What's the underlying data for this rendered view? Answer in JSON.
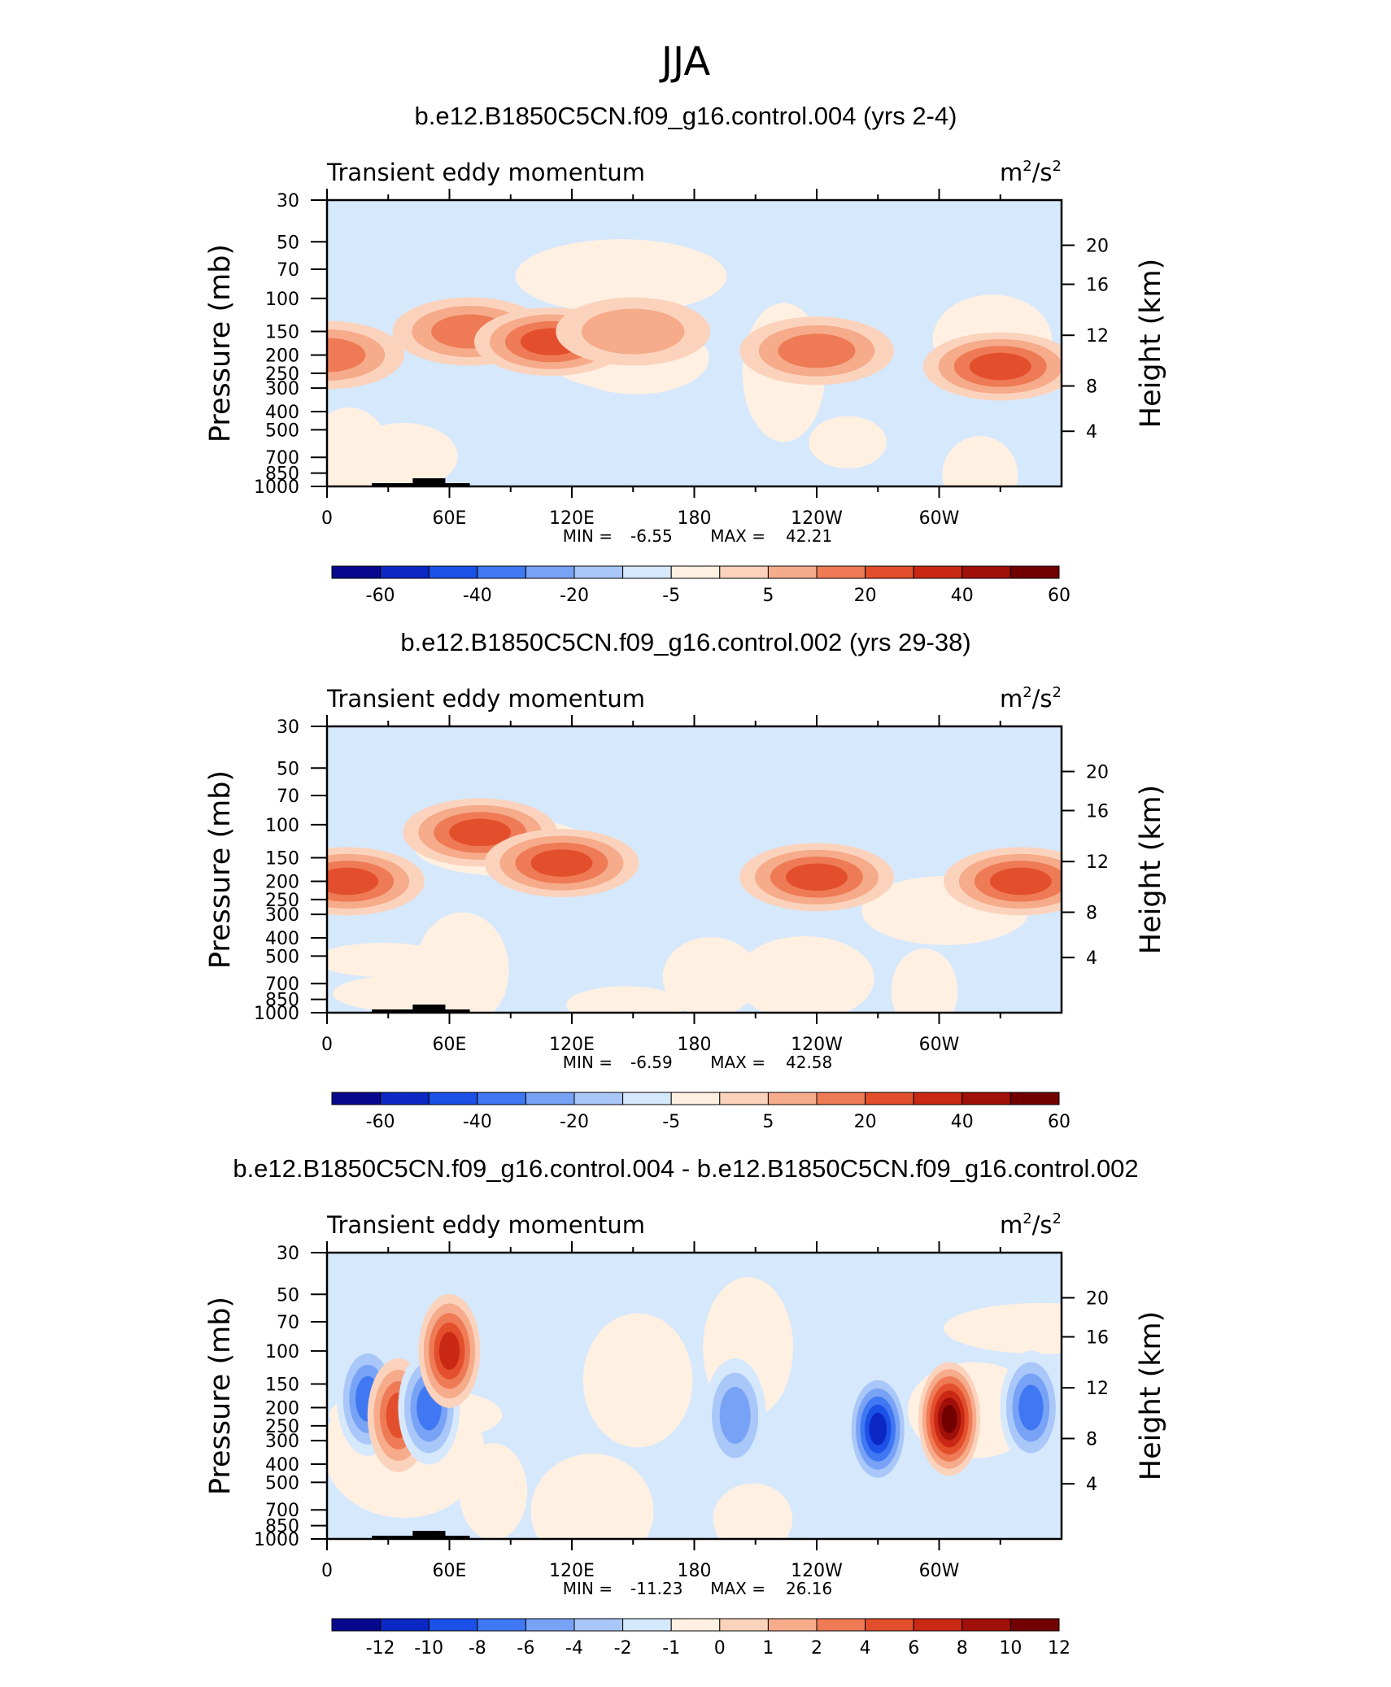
{
  "figure": {
    "title": "JJA"
  },
  "colors": {
    "levels": [
      "#08088f",
      "#0b28c5",
      "#1c51e8",
      "#3f78f2",
      "#78a2f5",
      "#a9c7f8",
      "#d6e8fc",
      "#fff0e2",
      "#fbd3bd",
      "#f6ab8b",
      "#ee7b55",
      "#e34f2c",
      "#c92914",
      "#a00f08",
      "#720000"
    ],
    "frame": "#000000",
    "topography": "#000000"
  },
  "chart_data": [
    {
      "type": "heatmap",
      "title": "b.e12.B1850C5CN.f09_g16.control.004 (yrs 2-4)",
      "left_label": "Transient eddy momentum",
      "units_main": "m",
      "units_exp1": "2",
      "units_slash": "/s",
      "units_exp2": "2",
      "xlabel": "",
      "ylabel": "Pressure (mb)",
      "y2label": "Height (km)",
      "x_ticks": [
        "0",
        "60E",
        "120E",
        "180",
        "120W",
        "60W"
      ],
      "x_range": [
        0,
        360
      ],
      "y_ticks": [
        "30",
        "50",
        "70",
        "100",
        "150",
        "200",
        "250",
        "300",
        "400",
        "500",
        "700",
        "850",
        "1000"
      ],
      "y2_ticks": [
        "20",
        "16",
        "12",
        "8",
        "4"
      ],
      "min_label": "MIN =",
      "min_value": "-6.55",
      "max_label": "MAX =",
      "max_value": "42.21",
      "colorbar_labels": [
        "-60",
        "-40",
        "-20",
        "-5",
        "5",
        "20",
        "40",
        "60"
      ],
      "field": [
        {
          "lon": 0,
          "p": 200,
          "value": 22
        },
        {
          "lon": 70,
          "p": 150,
          "value": 28
        },
        {
          "lon": 110,
          "p": 170,
          "value": 36
        },
        {
          "lon": 150,
          "p": 150,
          "value": 18
        },
        {
          "lon": 240,
          "p": 190,
          "value": 24
        },
        {
          "lon": 330,
          "p": 230,
          "value": 35
        }
      ]
    },
    {
      "type": "heatmap",
      "title": "b.e12.B1850C5CN.f09_g16.control.002 (yrs 29-38)",
      "left_label": "Transient eddy momentum",
      "units_main": "m",
      "units_exp1": "2",
      "units_slash": "/s",
      "units_exp2": "2",
      "xlabel": "",
      "ylabel": "Pressure (mb)",
      "y2label": "Height (km)",
      "x_ticks": [
        "0",
        "60E",
        "120E",
        "180",
        "120W",
        "60W"
      ],
      "x_range": [
        0,
        360
      ],
      "y_ticks": [
        "30",
        "50",
        "70",
        "100",
        "150",
        "200",
        "250",
        "300",
        "400",
        "500",
        "700",
        "850",
        "1000"
      ],
      "y2_ticks": [
        "20",
        "16",
        "12",
        "8",
        "4"
      ],
      "min_label": "MIN =",
      "min_value": "-6.59",
      "max_label": "MAX =",
      "max_value": "42.58",
      "colorbar_labels": [
        "-60",
        "-40",
        "-20",
        "-5",
        "5",
        "20",
        "40",
        "60"
      ],
      "field": [
        {
          "lon": 10,
          "p": 200,
          "value": 30
        },
        {
          "lon": 75,
          "p": 110,
          "value": 30
        },
        {
          "lon": 115,
          "p": 160,
          "value": 36
        },
        {
          "lon": 240,
          "p": 190,
          "value": 32
        },
        {
          "lon": 340,
          "p": 200,
          "value": 38
        }
      ]
    },
    {
      "type": "heatmap",
      "title": "b.e12.B1850C5CN.f09_g16.control.004 - b.e12.B1850C5CN.f09_g16.control.002",
      "left_label": "Transient eddy momentum",
      "units_main": "m",
      "units_exp1": "2",
      "units_slash": "/s",
      "units_exp2": "2",
      "xlabel": "",
      "ylabel": "Pressure (mb)",
      "y2label": "Height (km)",
      "x_ticks": [
        "0",
        "60E",
        "120E",
        "180",
        "120W",
        "60W"
      ],
      "x_range": [
        0,
        360
      ],
      "y_ticks": [
        "30",
        "50",
        "70",
        "100",
        "150",
        "200",
        "250",
        "300",
        "400",
        "500",
        "700",
        "850",
        "1000"
      ],
      "y2_ticks": [
        "20",
        "16",
        "12",
        "8",
        "4"
      ],
      "min_label": "MIN =",
      "min_value": "-11.23",
      "max_label": "MAX =",
      "max_value": "26.16",
      "colorbar_labels": [
        "-12",
        "-10",
        "-8",
        "-6",
        "-4",
        "-2",
        "-1",
        "0",
        "1",
        "2",
        "4",
        "6",
        "8",
        "10",
        "12"
      ],
      "field": [
        {
          "lon": 20,
          "p": 180,
          "value": -7
        },
        {
          "lon": 35,
          "p": 220,
          "value": 6
        },
        {
          "lon": 50,
          "p": 200,
          "value": -6
        },
        {
          "lon": 60,
          "p": 100,
          "value": 8
        },
        {
          "lon": 200,
          "p": 220,
          "value": -4
        },
        {
          "lon": 270,
          "p": 260,
          "value": -10
        },
        {
          "lon": 305,
          "p": 230,
          "value": 14
        },
        {
          "lon": 345,
          "p": 200,
          "value": -6
        }
      ]
    }
  ]
}
